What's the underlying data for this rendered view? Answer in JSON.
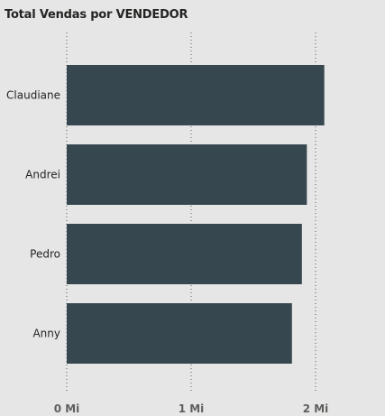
{
  "chart_data": {
    "type": "bar",
    "orientation": "horizontal",
    "title": "Total Vendas por VENDEDOR",
    "categories": [
      "Claudiane",
      "Andrei",
      "Pedro",
      "Anny"
    ],
    "values": [
      2.07,
      1.93,
      1.89,
      1.81
    ],
    "value_unit": "Mi",
    "xlim": [
      0,
      2.2
    ],
    "x_ticks": [
      {
        "value": 0,
        "label": "0 Mi"
      },
      {
        "value": 1,
        "label": "1 Mi"
      },
      {
        "value": 2,
        "label": "2 Mi"
      }
    ],
    "grid": "vertical dotted",
    "legend": "none",
    "bar_color": "#37474f"
  }
}
